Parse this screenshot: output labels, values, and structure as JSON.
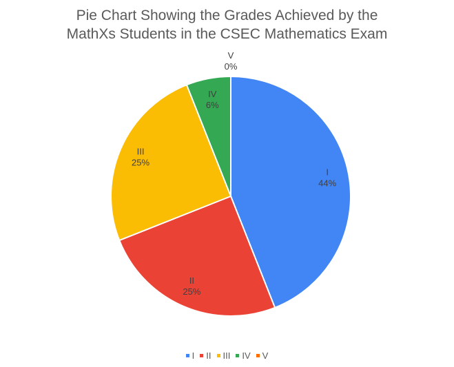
{
  "chart_data": {
    "type": "pie",
    "title_lines": [
      "Pie Chart Showing the Grades Achieved by the",
      "MathXs Students in the CSEC Mathematics Exam"
    ],
    "categories": [
      "I",
      "II",
      "III",
      "IV",
      "V"
    ],
    "values": [
      44,
      25,
      25,
      6,
      0
    ],
    "percent_labels": [
      "44%",
      "25%",
      "25%",
      "6%",
      "0%"
    ],
    "colors": [
      "#4285f4",
      "#ea4335",
      "#fbbc04",
      "#34a853",
      "#ff6d01"
    ],
    "legend_position": "bottom"
  }
}
